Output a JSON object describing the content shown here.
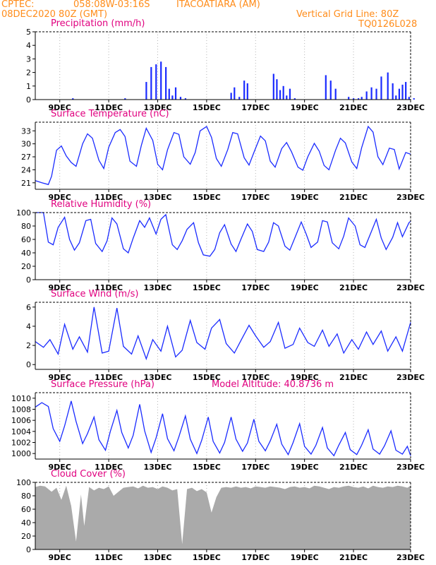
{
  "header": {
    "source": "CPTEC:",
    "coords": "058:08W-03:16S",
    "station": "ITACOATIARA (AM)",
    "datetime": "08DEC2020 80Z (GMT)",
    "grid_note": "Vertical Grid Line: 80Z",
    "code": "TQ0126L028"
  },
  "colors": {
    "header": "#ff8c1a",
    "title": "#e0007f",
    "series": "#1a2bff",
    "cloud": "#aaaaaa",
    "axis": "#000000",
    "grid": "#b5b5b5"
  },
  "chart_data": [
    {
      "type": "bar",
      "title": "Precipitation (mm/h)",
      "x_ticks": [
        "9DEC",
        "11DEC",
        "13DEC",
        "15DEC",
        "17DEC",
        "19DEC",
        "21DEC",
        "23DEC"
      ],
      "ylim": [
        0,
        5
      ],
      "y_ticks": [
        0,
        1,
        2,
        3,
        4,
        5
      ],
      "grid": "dotted",
      "x": [
        2.3,
        5.5,
        6.8,
        7.1,
        7.4,
        7.7,
        8.0,
        8.2,
        8.4,
        8.6,
        8.9,
        9.2,
        12.0,
        12.2,
        12.5,
        12.8,
        13.0,
        14.6,
        14.8,
        15.0,
        15.2,
        15.4,
        15.6,
        15.9,
        17.8,
        18.1,
        18.4,
        19.2,
        19.5,
        19.8,
        20.0,
        20.3,
        20.6,
        20.9,
        21.2,
        21.6,
        21.9,
        22.1,
        22.3,
        22.5,
        22.7,
        22.9,
        23.2
      ],
      "values": [
        0.1,
        0.1,
        1.3,
        2.4,
        2.6,
        2.8,
        2.4,
        0.8,
        0.3,
        0.9,
        0.2,
        0.1,
        0.5,
        0.9,
        0.2,
        1.4,
        1.2,
        1.9,
        1.5,
        0.7,
        1.0,
        0.3,
        0.8,
        0.1,
        1.8,
        1.4,
        0.8,
        0.2,
        0.1,
        0.1,
        0.2,
        0.6,
        0.9,
        0.8,
        1.7,
        2.0,
        1.2,
        0.3,
        0.8,
        1.1,
        1.3,
        0.2,
        0.1
      ]
    },
    {
      "type": "line",
      "title": "Surface Temperature (nC)",
      "x_ticks": [
        "9DEC",
        "11DEC",
        "13DEC",
        "15DEC",
        "17DEC",
        "19DEC",
        "21DEC",
        "23DEC"
      ],
      "ylim": [
        19.5,
        35
      ],
      "y_ticks": [
        21,
        24,
        27,
        30,
        33
      ],
      "grid": "dotted",
      "x": [
        0.0,
        0.4,
        0.8,
        1.0,
        1.3,
        1.6,
        1.9,
        2.2,
        2.5,
        2.9,
        3.2,
        3.5,
        3.9,
        4.2,
        4.5,
        4.9,
        5.2,
        5.5,
        5.8,
        6.2,
        6.5,
        6.8,
        7.2,
        7.5,
        7.8,
        8.1,
        8.5,
        8.8,
        9.1,
        9.5,
        9.8,
        10.1,
        10.5,
        10.8,
        11.1,
        11.4,
        11.8,
        12.1,
        12.4,
        12.8,
        13.1,
        13.4,
        13.8,
        14.1,
        14.4,
        14.7,
        15.1,
        15.4,
        15.7,
        16.1,
        16.4,
        16.7,
        17.1,
        17.4,
        17.7,
        18.0,
        18.4,
        18.7,
        19.0,
        19.4,
        19.7,
        20.0,
        20.4,
        20.7,
        21.0,
        21.3,
        21.7,
        22.0,
        22.3,
        22.7,
        23.0
      ],
      "values": [
        21.5,
        21.0,
        20.6,
        22.5,
        28.5,
        29.5,
        27.2,
        25.7,
        24.8,
        30.0,
        32.3,
        31.3,
        26.2,
        24.3,
        29.2,
        32.6,
        33.3,
        31.7,
        26.0,
        24.8,
        29.6,
        33.6,
        30.8,
        25.3,
        24.0,
        28.6,
        32.6,
        32.2,
        27.0,
        25.3,
        28.0,
        33.0,
        34.0,
        31.5,
        26.6,
        24.8,
        28.7,
        32.6,
        32.3,
        26.8,
        25.1,
        28.0,
        31.8,
        30.7,
        26.0,
        24.6,
        28.9,
        30.3,
        28.2,
        24.6,
        23.9,
        27.0,
        30.1,
        28.3,
        25.0,
        24.0,
        28.5,
        31.3,
        30.2,
        25.8,
        24.3,
        29.1,
        34.0,
        32.7,
        27.0,
        25.2,
        29.0,
        28.7,
        24.2,
        28.0,
        27.6
      ]
    },
    {
      "type": "line",
      "title": "Relative Humidity (%)",
      "x_ticks": [
        "9DEC",
        "11DEC",
        "13DEC",
        "15DEC",
        "17DEC",
        "19DEC",
        "21DEC",
        "23DEC"
      ],
      "ylim": [
        0,
        100
      ],
      "y_ticks": [
        0,
        20,
        40,
        60,
        80,
        100
      ],
      "grid": "dotted",
      "x": [
        0.0,
        0.5,
        0.8,
        1.1,
        1.4,
        1.8,
        2.1,
        2.4,
        2.7,
        3.1,
        3.4,
        3.7,
        4.1,
        4.4,
        4.7,
        5.0,
        5.4,
        5.7,
        6.0,
        6.4,
        6.7,
        7.0,
        7.4,
        7.7,
        8.0,
        8.4,
        8.7,
        9.0,
        9.3,
        9.7,
        10.0,
        10.3,
        10.7,
        11.0,
        11.3,
        11.6,
        12.0,
        12.3,
        12.6,
        13.0,
        13.3,
        13.6,
        14.0,
        14.3,
        14.6,
        14.9,
        15.3,
        15.6,
        15.9,
        16.3,
        16.6,
        16.9,
        17.3,
        17.6,
        17.9,
        18.2,
        18.6,
        18.9,
        19.2,
        19.6,
        19.9,
        20.2,
        20.6,
        20.9,
        21.2,
        21.5,
        21.9,
        22.2,
        22.5,
        22.9,
        23.0
      ],
      "values": [
        100,
        100,
        56,
        52,
        78,
        93,
        60,
        44,
        55,
        88,
        90,
        54,
        42,
        58,
        92,
        83,
        46,
        40,
        62,
        88,
        78,
        92,
        68,
        90,
        97,
        52,
        45,
        58,
        75,
        85,
        55,
        37,
        35,
        45,
        70,
        82,
        53,
        42,
        60,
        83,
        72,
        45,
        42,
        56,
        85,
        80,
        50,
        44,
        62,
        86,
        68,
        48,
        56,
        88,
        86,
        55,
        46,
        65,
        92,
        80,
        52,
        48,
        72,
        90,
        62,
        45,
        63,
        85,
        64,
        85,
        87
      ]
    },
    {
      "type": "line",
      "title": "Surface Wind (m/s)",
      "x_ticks": [
        "9DEC",
        "11DEC",
        "13DEC",
        "15DEC",
        "17DEC",
        "19DEC",
        "21DEC",
        "23DEC"
      ],
      "ylim": [
        -0.5,
        6.5
      ],
      "y_ticks": [
        0,
        2,
        4,
        6
      ],
      "grid": "dotted",
      "x": [
        0.0,
        0.5,
        0.9,
        1.4,
        1.8,
        2.3,
        2.7,
        3.2,
        3.6,
        4.1,
        4.5,
        5.0,
        5.4,
        5.9,
        6.3,
        6.8,
        7.2,
        7.7,
        8.1,
        8.6,
        9.0,
        9.5,
        9.9,
        10.4,
        10.8,
        11.3,
        11.7,
        12.2,
        12.6,
        13.1,
        13.5,
        14.0,
        14.4,
        14.9,
        15.3,
        15.8,
        16.2,
        16.7,
        17.1,
        17.6,
        18.0,
        18.5,
        18.9,
        19.4,
        19.8,
        20.3,
        20.7,
        21.2,
        21.6,
        22.1,
        22.5,
        23.0
      ],
      "values": [
        2.4,
        1.8,
        2.6,
        1.1,
        4.2,
        1.6,
        2.9,
        1.3,
        6.0,
        1.2,
        1.4,
        5.9,
        1.9,
        1.1,
        3.0,
        0.6,
        2.6,
        1.4,
        4.0,
        0.8,
        1.5,
        4.6,
        2.3,
        1.6,
        3.8,
        4.7,
        2.2,
        1.2,
        2.5,
        4.1,
        3.0,
        1.8,
        2.4,
        4.4,
        1.7,
        2.1,
        3.8,
        2.3,
        1.9,
        3.6,
        1.9,
        3.2,
        1.2,
        2.6,
        1.6,
        3.4,
        2.1,
        3.5,
        1.4,
        2.9,
        1.4,
        4.4
      ]
    },
    {
      "type": "line",
      "title": "Surface Pressure (hPa)",
      "annotation": "Model Altitude: 40.8736 m",
      "x_ticks": [
        "9DEC",
        "11DEC",
        "13DEC",
        "15DEC",
        "17DEC",
        "19DEC",
        "21DEC",
        "23DEC"
      ],
      "ylim": [
        999,
        1011
      ],
      "y_ticks": [
        1000,
        1002,
        1004,
        1006,
        1008,
        1010
      ],
      "grid": "dotted",
      "x": [
        0.0,
        0.4,
        0.8,
        1.1,
        1.5,
        1.8,
        2.2,
        2.5,
        2.9,
        3.2,
        3.6,
        3.9,
        4.3,
        4.6,
        5.0,
        5.3,
        5.7,
        6.0,
        6.4,
        6.7,
        7.1,
        7.4,
        7.8,
        8.1,
        8.5,
        8.8,
        9.2,
        9.5,
        9.9,
        10.2,
        10.6,
        10.9,
        11.3,
        11.6,
        12.0,
        12.3,
        12.7,
        13.0,
        13.4,
        13.7,
        14.1,
        14.4,
        14.8,
        15.1,
        15.5,
        15.8,
        16.2,
        16.5,
        16.9,
        17.2,
        17.6,
        17.9,
        18.3,
        18.6,
        19.0,
        19.3,
        19.7,
        20.0,
        20.4,
        20.7,
        21.1,
        21.4,
        21.8,
        22.1,
        22.5,
        22.8,
        23.0
      ],
      "values": [
        1008.4,
        1009.2,
        1008.5,
        1004.5,
        1002.2,
        1005.0,
        1009.5,
        1005.8,
        1001.8,
        1003.6,
        1006.6,
        1002.5,
        1000.6,
        1004.0,
        1007.8,
        1003.8,
        1001.0,
        1003.3,
        1008.9,
        1004.1,
        1000.2,
        1002.8,
        1007.2,
        1002.7,
        1000.5,
        1003.0,
        1006.8,
        1002.6,
        1000.0,
        1002.4,
        1006.6,
        1002.2,
        1000.1,
        1002.0,
        1006.6,
        1002.6,
        1000.4,
        1001.9,
        1006.2,
        1002.2,
        1000.5,
        1002.3,
        1005.3,
        1001.7,
        999.8,
        1002.0,
        1005.4,
        1001.3,
        999.9,
        1001.5,
        1004.7,
        1001.0,
        999.6,
        1001.5,
        1003.8,
        1000.7,
        999.8,
        1001.5,
        1004.3,
        1000.8,
        999.9,
        1001.4,
        1004.1,
        1000.6,
        999.9,
        1001.3,
        999.6
      ]
    },
    {
      "type": "area",
      "title": "Cloud Cover (%)",
      "x_ticks": [
        "9DEC",
        "11DEC",
        "13DEC",
        "15DEC",
        "17DEC",
        "19DEC",
        "21DEC",
        "23DEC"
      ],
      "ylim": [
        0,
        100
      ],
      "y_ticks": [
        0,
        20,
        40,
        60,
        80,
        100
      ],
      "grid": "dotted",
      "x": [
        0.0,
        0.3,
        0.6,
        1.0,
        1.3,
        1.6,
        1.9,
        2.2,
        2.5,
        2.8,
        3.0,
        3.3,
        3.6,
        3.9,
        4.2,
        4.5,
        4.8,
        5.1,
        5.4,
        5.7,
        6.0,
        6.3,
        6.6,
        6.9,
        7.2,
        7.5,
        7.8,
        8.1,
        8.4,
        8.7,
        9.0,
        9.3,
        9.6,
        9.9,
        10.2,
        10.5,
        10.8,
        11.1,
        11.4,
        11.7,
        12.0,
        12.3,
        12.6,
        12.9,
        13.2,
        13.5,
        13.8,
        14.1,
        14.4,
        14.7,
        15.0,
        15.3,
        15.6,
        15.9,
        16.2,
        16.5,
        16.8,
        17.1,
        17.4,
        17.7,
        18.0,
        18.3,
        18.6,
        18.9,
        19.2,
        19.5,
        19.8,
        20.1,
        20.4,
        20.7,
        21.0,
        21.3,
        21.6,
        21.9,
        22.2,
        22.5,
        22.8,
        23.0
      ],
      "values": [
        93,
        95,
        94,
        86,
        92,
        74,
        95,
        65,
        12,
        82,
        35,
        93,
        88,
        92,
        90,
        94,
        80,
        86,
        92,
        93,
        94,
        91,
        95,
        92,
        93,
        90,
        94,
        92,
        88,
        90,
        8,
        90,
        92,
        87,
        90,
        85,
        55,
        78,
        92,
        93,
        92,
        94,
        92,
        93,
        91,
        94,
        93,
        92,
        94,
        93,
        92,
        90,
        93,
        94,
        92,
        93,
        91,
        95,
        94,
        92,
        90,
        93,
        92,
        94,
        95,
        93,
        92,
        94,
        91,
        95,
        93,
        92,
        94,
        93,
        95,
        94,
        92,
        95
      ]
    }
  ]
}
